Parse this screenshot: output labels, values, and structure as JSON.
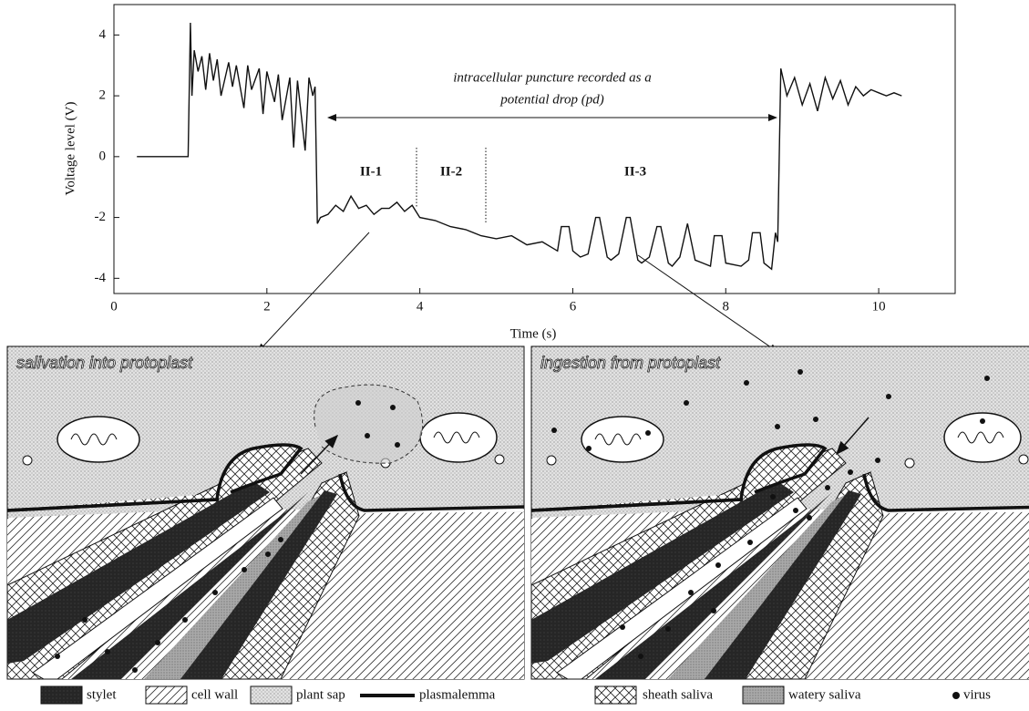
{
  "chart_data": {
    "type": "line",
    "x_label": "Time (s)",
    "y_label": "Voltage level (V)",
    "annotation": [
      "intracellular puncture recorded as a",
      "potential drop (pd)"
    ],
    "phases": [
      "II-1",
      "II-2",
      "II-3"
    ],
    "color": "#111111",
    "grid": false,
    "xlim": [
      0,
      11
    ],
    "ylim": [
      -4.5,
      5
    ],
    "xticks": [
      0,
      2,
      4,
      6,
      8,
      10
    ],
    "yticks": [
      -4,
      -2,
      0,
      2,
      4
    ],
    "x": [
      0.3,
      0.97,
      1.0,
      1.02,
      1.05,
      1.1,
      1.15,
      1.2,
      1.25,
      1.3,
      1.35,
      1.4,
      1.5,
      1.55,
      1.6,
      1.7,
      1.75,
      1.8,
      1.9,
      1.95,
      2.0,
      2.1,
      2.15,
      2.2,
      2.3,
      2.35,
      2.4,
      2.5,
      2.55,
      2.6,
      2.63,
      2.66,
      2.7,
      2.8,
      2.9,
      3.0,
      3.1,
      3.2,
      3.3,
      3.4,
      3.5,
      3.6,
      3.7,
      3.8,
      3.9,
      4.0,
      4.2,
      4.4,
      4.6,
      4.8,
      5.0,
      5.2,
      5.4,
      5.6,
      5.8,
      5.85,
      5.95,
      6.0,
      6.1,
      6.2,
      6.3,
      6.35,
      6.45,
      6.5,
      6.6,
      6.7,
      6.75,
      6.85,
      6.9,
      7.0,
      7.1,
      7.15,
      7.25,
      7.3,
      7.4,
      7.5,
      7.6,
      7.7,
      7.8,
      7.85,
      7.95,
      8.0,
      8.2,
      8.3,
      8.35,
      8.45,
      8.5,
      8.6,
      8.65,
      8.68,
      8.72,
      8.8,
      8.9,
      9.0,
      9.1,
      9.2,
      9.3,
      9.4,
      9.5,
      9.6,
      9.7,
      9.8,
      9.9,
      10.0,
      10.1,
      10.2,
      10.3
    ],
    "values": [
      0,
      0,
      4.4,
      2.0,
      3.5,
      2.8,
      3.3,
      2.2,
      3.4,
      2.5,
      3.2,
      2.0,
      3.1,
      2.3,
      3.0,
      1.6,
      3.0,
      2.2,
      2.9,
      1.4,
      2.8,
      1.8,
      2.7,
      1.2,
      2.6,
      0.3,
      2.5,
      0.2,
      2.6,
      2.0,
      2.3,
      -2.2,
      -2.0,
      -1.9,
      -1.6,
      -1.8,
      -1.3,
      -1.7,
      -1.6,
      -1.9,
      -1.7,
      -1.7,
      -1.5,
      -1.8,
      -1.6,
      -2.0,
      -2.1,
      -2.3,
      -2.4,
      -2.6,
      -2.7,
      -2.6,
      -2.9,
      -2.8,
      -3.1,
      -2.3,
      -2.3,
      -3.1,
      -3.3,
      -3.2,
      -2.0,
      -2.0,
      -3.3,
      -3.4,
      -3.2,
      -2.0,
      -2.0,
      -3.4,
      -3.5,
      -3.3,
      -2.3,
      -2.3,
      -3.5,
      -3.6,
      -3.3,
      -2.2,
      -3.4,
      -3.5,
      -3.6,
      -2.6,
      -2.6,
      -3.5,
      -3.6,
      -3.4,
      -2.5,
      -2.5,
      -3.5,
      -3.7,
      -2.5,
      -2.8,
      2.9,
      2.0,
      2.6,
      1.7,
      2.4,
      1.5,
      2.6,
      1.9,
      2.5,
      1.7,
      2.3,
      2.0,
      2.2,
      2.1,
      2.0,
      2.1,
      2.0
    ]
  },
  "panels": [
    {
      "title": "salivation into protoplast"
    },
    {
      "title": "ingestion from protoplast"
    }
  ],
  "legend": [
    "stylet",
    "cell wall",
    "plant sap",
    "plasmalemma",
    "sheath saliva",
    "watery saliva",
    "virus"
  ]
}
